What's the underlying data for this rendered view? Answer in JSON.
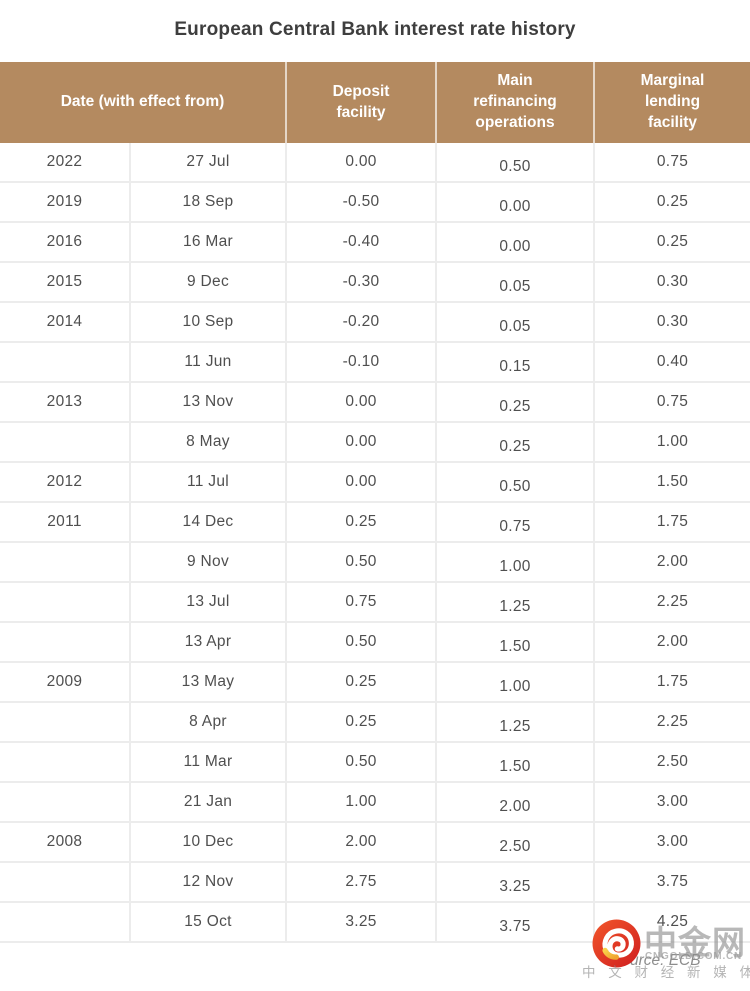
{
  "title": "European Central Bank interest rate history",
  "table": {
    "headers": [
      "Date (with effect from)",
      "Deposit facility",
      "Main refinancing operations",
      "Marginal lending facility"
    ]
  },
  "chart_data": {
    "type": "table",
    "title": "European Central Bank interest rate history",
    "columns": [
      "Year",
      "Date (with effect from)",
      "Deposit facility",
      "Main refinancing operations",
      "Marginal lending facility"
    ],
    "rows": [
      [
        "2022",
        "27 Jul",
        "0.00",
        "0.50",
        "0.75"
      ],
      [
        "2019",
        "18 Sep",
        "-0.50",
        "0.00",
        "0.25"
      ],
      [
        "2016",
        "16 Mar",
        "-0.40",
        "0.00",
        "0.25"
      ],
      [
        "2015",
        "9 Dec",
        "-0.30",
        "0.05",
        "0.30"
      ],
      [
        "2014",
        "10 Sep",
        "-0.20",
        "0.05",
        "0.30"
      ],
      [
        "",
        "11 Jun",
        "-0.10",
        "0.15",
        "0.40"
      ],
      [
        "2013",
        "13 Nov",
        "0.00",
        "0.25",
        "0.75"
      ],
      [
        "",
        "8 May",
        "0.00",
        "0.25",
        "1.00"
      ],
      [
        "2012",
        "11 Jul",
        "0.00",
        "0.50",
        "1.50"
      ],
      [
        "2011",
        "14 Dec",
        "0.25",
        "0.75",
        "1.75"
      ],
      [
        "",
        "9 Nov",
        "0.50",
        "1.00",
        "2.00"
      ],
      [
        "",
        "13 Jul",
        "0.75",
        "1.25",
        "2.25"
      ],
      [
        "",
        "13 Apr",
        "0.50",
        "1.50",
        "2.00"
      ],
      [
        "2009",
        "13 May",
        "0.25",
        "1.00",
        "1.75"
      ],
      [
        "",
        "8 Apr",
        "0.25",
        "1.25",
        "2.25"
      ],
      [
        "",
        "11 Mar",
        "0.50",
        "1.50",
        "2.50"
      ],
      [
        "",
        "21 Jan",
        "1.00",
        "2.00",
        "3.00"
      ],
      [
        "2008",
        "10 Dec",
        "2.00",
        "2.50",
        "3.00"
      ],
      [
        "",
        "12 Nov",
        "2.75",
        "3.25",
        "3.75"
      ],
      [
        "",
        "15 Oct",
        "3.25",
        "3.75",
        "4.25"
      ]
    ],
    "source": "Source: ECB"
  },
  "source_note": "Source: ECB",
  "watermark": {
    "brand": "中金网",
    "site": "CNGOLD.COM.CN",
    "tagline": "中 文 财 经 新 媒 体"
  },
  "colors": {
    "header_bg": "#b48a60",
    "header_text": "#ffffff",
    "title_text": "#3e3e3e",
    "body_text": "#4f4f4f",
    "row_border": "#ececec",
    "logo_red_light": "#f2572b",
    "logo_red_dark": "#cf1d1f",
    "logo_yellow": "#f5b83d",
    "watermark_gray": "#8c8c8c"
  }
}
